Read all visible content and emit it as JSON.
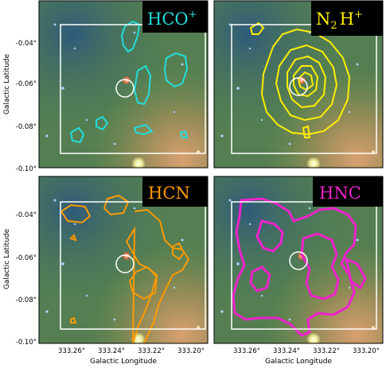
{
  "figure": {
    "ylabel": "Galactic Latitude",
    "xlabel": "Galactic Longitude",
    "y_ticks": [
      "-0.04°",
      "-0.06°",
      "-0.08°",
      "-0.10°"
    ],
    "x_ticks": [
      "333.26°",
      "333.24°",
      "333.22°",
      "333.20°"
    ],
    "colors": {
      "hco": "#22dddd",
      "n2h": "#ffee00",
      "hcn": "#ff9900",
      "hnc": "#ee22cc",
      "box": "#ffffff",
      "label_bg": "#000000"
    }
  },
  "panels": [
    {
      "id": "hco",
      "title": "HCO",
      "title_sup": "+",
      "color": "#22dddd"
    },
    {
      "id": "n2h",
      "title": "N",
      "title_sub": "2",
      "title_mid": "H",
      "title_sup": "+",
      "color": "#ffee00"
    },
    {
      "id": "hcn",
      "title": "HCN",
      "color": "#ff9900"
    },
    {
      "id": "hnc",
      "title": "HNC",
      "color": "#ee22cc"
    }
  ]
}
